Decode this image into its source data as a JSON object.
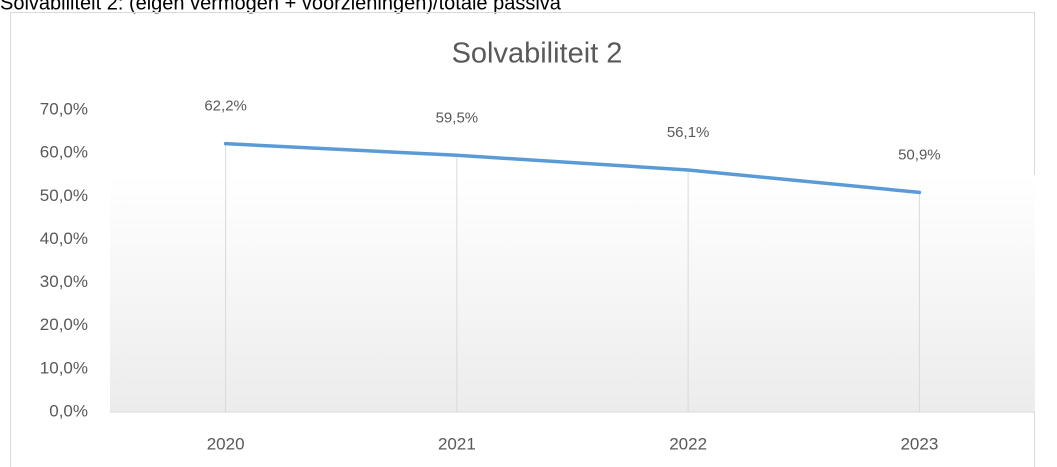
{
  "heading": "Solvabiliteit 2: (eigen vermogen + voorzieningen)/totale passiva",
  "chart_data": {
    "type": "line",
    "title": "Solvabiliteit 2",
    "categories": [
      "2020",
      "2021",
      "2022",
      "2023"
    ],
    "values": [
      62.2,
      59.5,
      56.1,
      50.9
    ],
    "value_labels": [
      "62,2%",
      "59,5%",
      "56,1%",
      "50,9%"
    ],
    "color": "#5b9bd5",
    "ylim": [
      0,
      70
    ],
    "yticks": [
      {
        "value": 0,
        "label": "0,0%"
      },
      {
        "value": 10,
        "label": "10,0%"
      },
      {
        "value": 20,
        "label": "20,0%"
      },
      {
        "value": 30,
        "label": "30,0%"
      },
      {
        "value": 40,
        "label": "40,0%"
      },
      {
        "value": 50,
        "label": "50,0%"
      },
      {
        "value": 60,
        "label": "60,0%"
      },
      {
        "value": 70,
        "label": "70,0%"
      }
    ],
    "drop_lines": true
  }
}
